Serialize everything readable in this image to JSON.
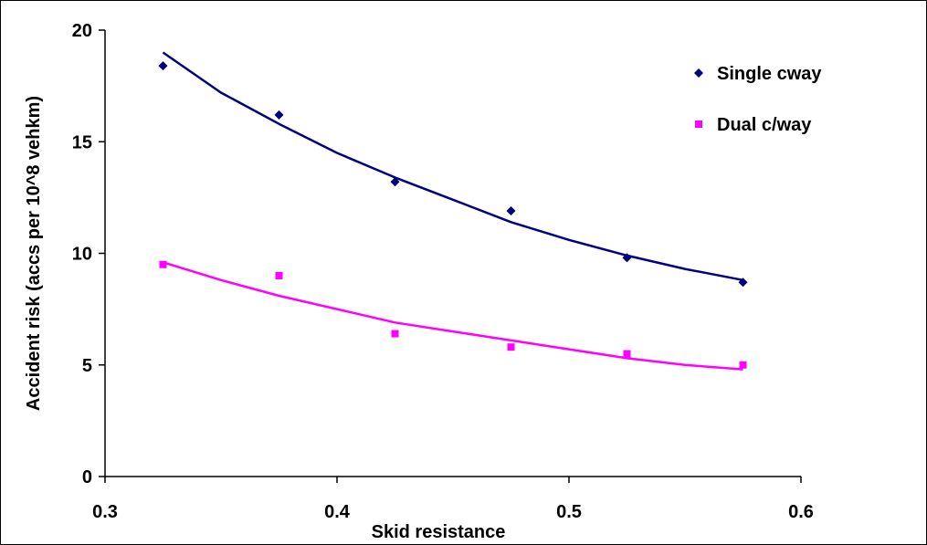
{
  "chart_data": {
    "type": "scatter",
    "xlabel": "Skid resistance",
    "ylabel": "Accident risk (accs per 10^8 vehkm)",
    "xlim": [
      0.3,
      0.6
    ],
    "ylim": [
      0,
      20
    ],
    "x_ticks": [
      "0.3",
      "0.4",
      "0.5",
      "0.6"
    ],
    "y_ticks": [
      "0",
      "5",
      "10",
      "15",
      "20"
    ],
    "grid": false,
    "legend_position": "top-right",
    "series": [
      {
        "name": "Single cway",
        "marker": "diamond",
        "color": "#000080",
        "x": [
          0.325,
          0.375,
          0.425,
          0.475,
          0.525,
          0.575
        ],
        "y": [
          18.4,
          16.2,
          13.2,
          11.9,
          9.8,
          8.7
        ],
        "trendline": {
          "x": [
            0.325,
            0.35,
            0.375,
            0.4,
            0.425,
            0.45,
            0.475,
            0.5,
            0.525,
            0.55,
            0.575
          ],
          "y": [
            19.0,
            17.2,
            15.8,
            14.5,
            13.4,
            12.4,
            11.4,
            10.6,
            9.9,
            9.3,
            8.8
          ]
        }
      },
      {
        "name": "Dual c/way",
        "marker": "square",
        "color": "#FF00FF",
        "x": [
          0.325,
          0.375,
          0.425,
          0.475,
          0.525,
          0.575
        ],
        "y": [
          9.5,
          9.0,
          6.4,
          5.8,
          5.5,
          5.0
        ],
        "trendline": {
          "x": [
            0.325,
            0.35,
            0.375,
            0.4,
            0.425,
            0.45,
            0.475,
            0.5,
            0.525,
            0.55,
            0.575
          ],
          "y": [
            9.6,
            8.8,
            8.1,
            7.5,
            6.9,
            6.5,
            6.1,
            5.7,
            5.3,
            5.0,
            4.8
          ]
        }
      }
    ]
  }
}
